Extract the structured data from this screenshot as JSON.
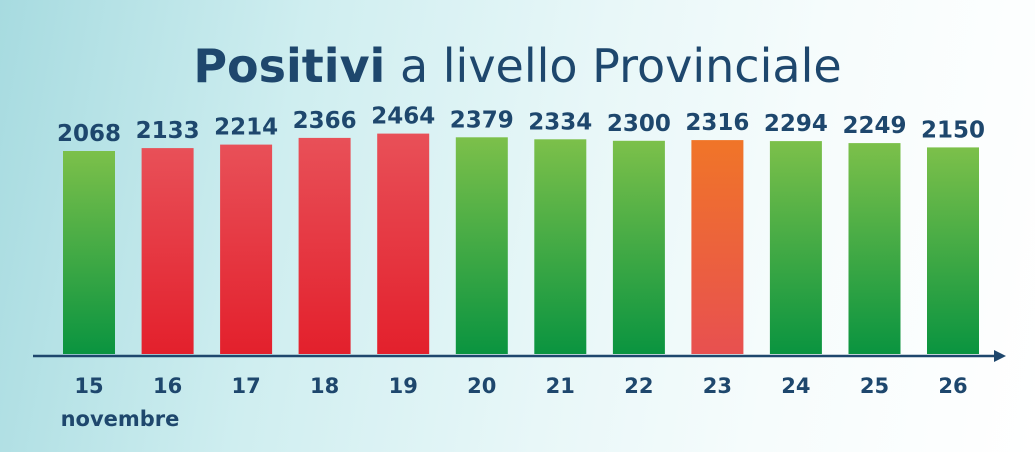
{
  "title": {
    "bold": "Positivi",
    "rest": "a livello Provinciale"
  },
  "month_label": "novembre",
  "colors": {
    "title": "#1e476d",
    "axis": "#1e476d",
    "green_top": "#7cc04a",
    "green_bottom": "#0a9440",
    "red_top": "#e85058",
    "red_bottom": "#e3202c",
    "orange_top": "#f07528",
    "orange_bottom": "#e85050"
  },
  "chart_data": {
    "type": "bar",
    "title": "Positivi a livello Provinciale",
    "xlabel": "novembre",
    "ylabel": "",
    "categories": [
      "15",
      "16",
      "17",
      "18",
      "19",
      "20",
      "21",
      "22",
      "23",
      "24",
      "25",
      "26"
    ],
    "values": [
      2068,
      2133,
      2214,
      2366,
      2464,
      2379,
      2334,
      2300,
      2316,
      2294,
      2249,
      2150
    ],
    "bar_colors": [
      "green",
      "red",
      "red",
      "red",
      "red",
      "green",
      "green",
      "green",
      "orange",
      "green",
      "green",
      "green"
    ],
    "grid": false,
    "legend": "none"
  }
}
